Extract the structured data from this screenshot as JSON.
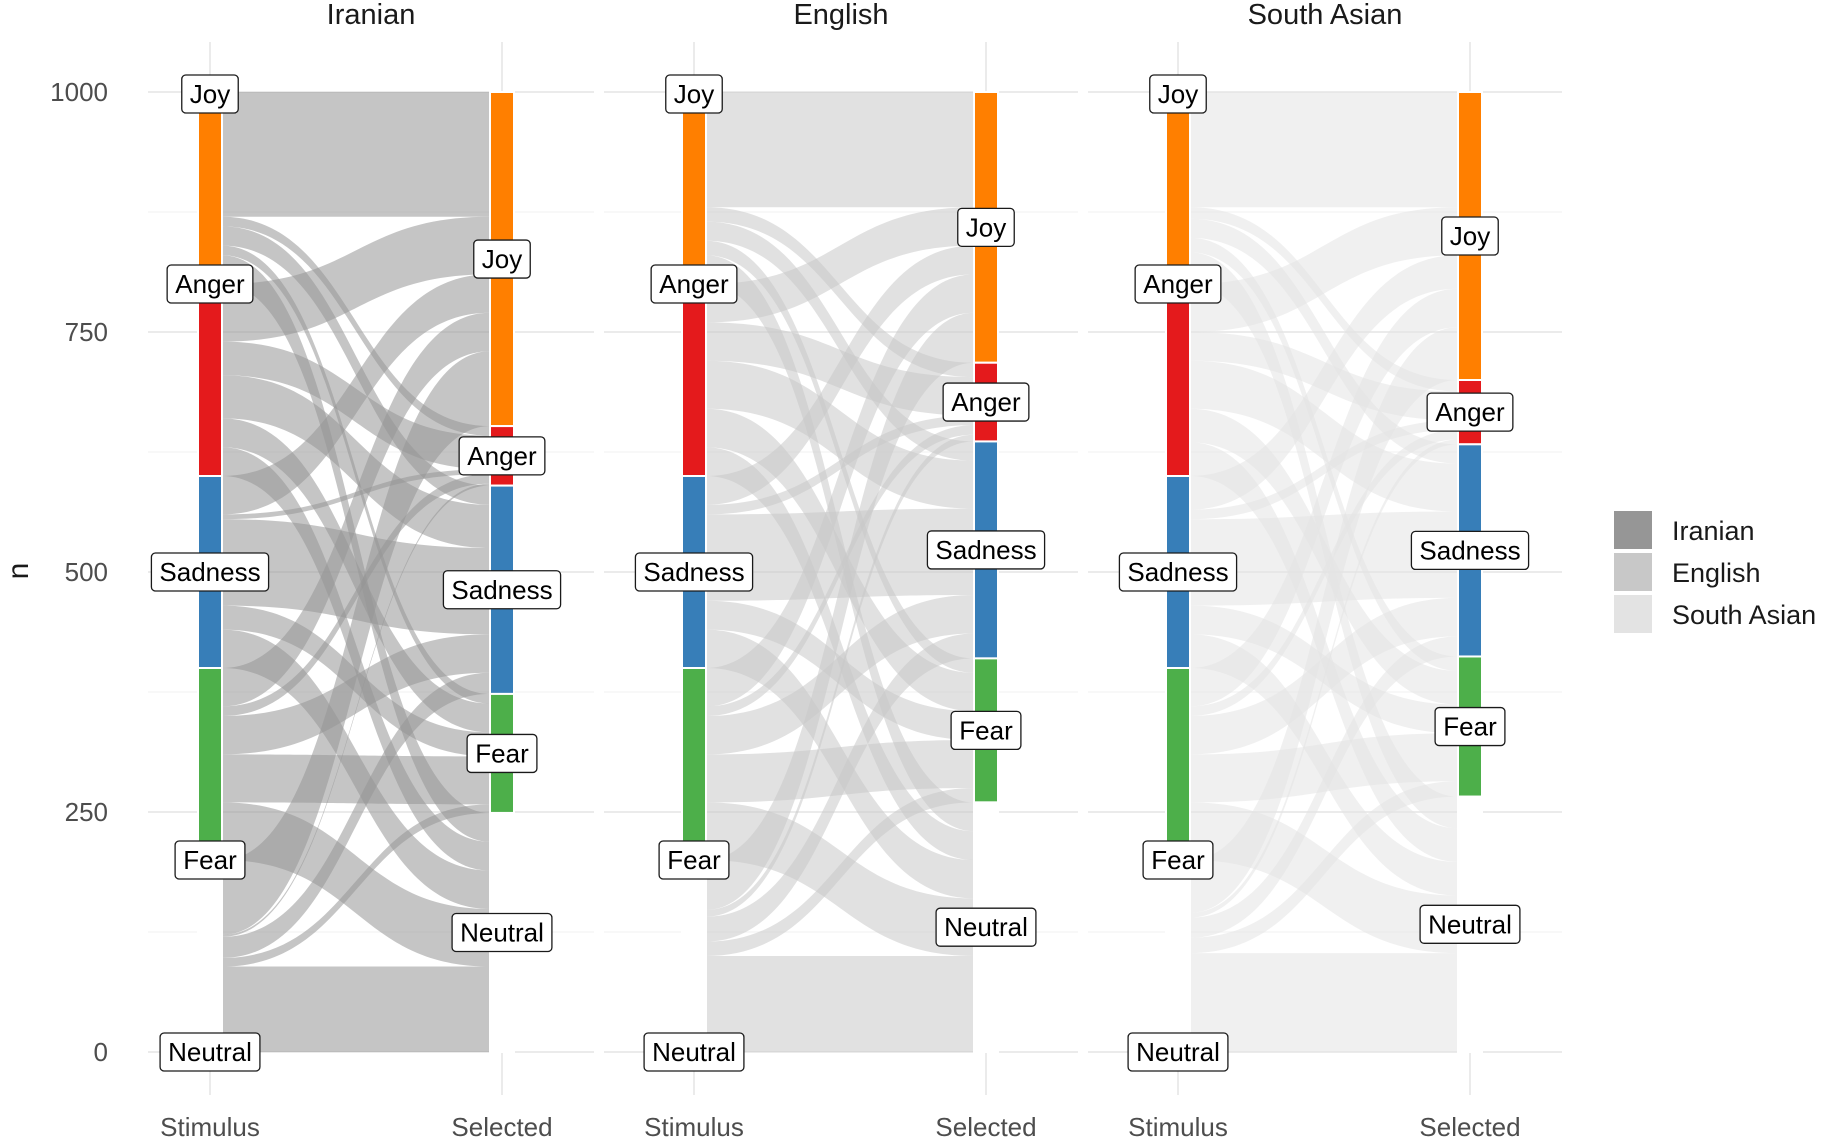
{
  "chart_data": {
    "type": "alluvial",
    "ylabel": "n",
    "ylim": [
      0,
      1000
    ],
    "y_ticks": [
      0,
      250,
      500,
      750,
      1000
    ],
    "x_axes": [
      "Stimulus",
      "Selected"
    ],
    "node_order": [
      "Joy",
      "Anger",
      "Sadness",
      "Fear",
      "Neutral"
    ],
    "colors": {
      "Joy": "#ff7f00",
      "Anger": "#e41a1c",
      "Sadness": "#377eb8",
      "Fear": "#4daf4a",
      "Neutral": "#ffffff",
      "Iranian": "#969696",
      "English": "#c8c8c8",
      "South Asian": "#e3e3e3"
    },
    "legend": {
      "position": "right",
      "entries": [
        "Iranian",
        "English",
        "South Asian"
      ]
    },
    "panels": [
      {
        "title": "Iranian",
        "stimulus": {
          "Joy": 200,
          "Anger": 200,
          "Sadness": 200,
          "Fear": 200,
          "Neutral": 200
        },
        "selected": {
          "Joy": 348,
          "Anger": 62,
          "Sadness": 217,
          "Fear": 124,
          "Neutral": 249
        },
        "flows": {
          "Joy": {
            "Joy": 130,
            "Anger": 10,
            "Sadness": 20,
            "Fear": 10,
            "Neutral": 30
          },
          "Anger": {
            "Joy": 60,
            "Anger": 35,
            "Sadness": 45,
            "Fear": 30,
            "Neutral": 30
          },
          "Sadness": {
            "Joy": 40,
            "Anger": 5,
            "Sadness": 90,
            "Fear": 25,
            "Neutral": 40
          },
          "Fear": {
            "Joy": 40,
            "Anger": 10,
            "Sadness": 40,
            "Fear": 50,
            "Neutral": 60
          },
          "Neutral": {
            "Joy": 78,
            "Anger": 2,
            "Sadness": 22,
            "Fear": 9,
            "Neutral": 89
          }
        }
      },
      {
        "title": "English",
        "stimulus": {
          "Joy": 200,
          "Anger": 200,
          "Sadness": 200,
          "Fear": 200,
          "Neutral": 200
        },
        "selected": {
          "Joy": 282,
          "Anger": 82,
          "Sadness": 226,
          "Fear": 150,
          "Neutral": 260
        },
        "flows": {
          "Joy": {
            "Joy": 120,
            "Anger": 15,
            "Sadness": 20,
            "Fear": 15,
            "Neutral": 30
          },
          "Anger": {
            "Joy": 40,
            "Anger": 40,
            "Sadness": 50,
            "Fear": 40,
            "Neutral": 30
          },
          "Sadness": {
            "Joy": 30,
            "Anger": 10,
            "Sadness": 90,
            "Fear": 30,
            "Neutral": 40
          },
          "Fear": {
            "Joy": 40,
            "Anger": 10,
            "Sadness": 40,
            "Fear": 50,
            "Neutral": 60
          },
          "Neutral": {
            "Joy": 52,
            "Anger": 7,
            "Sadness": 26,
            "Fear": 15,
            "Neutral": 100
          }
        }
      },
      {
        "title": "South Asian",
        "stimulus": {
          "Joy": 200,
          "Anger": 200,
          "Sadness": 200,
          "Fear": 200,
          "Neutral": 200
        },
        "selected": {
          "Joy": 300,
          "Anger": 67,
          "Sadness": 221,
          "Fear": 146,
          "Neutral": 266
        },
        "flows": {
          "Joy": {
            "Joy": 120,
            "Anger": 12,
            "Sadness": 20,
            "Fear": 15,
            "Neutral": 33
          },
          "Anger": {
            "Joy": 50,
            "Anger": 30,
            "Sadness": 50,
            "Fear": 35,
            "Neutral": 35
          },
          "Sadness": {
            "Joy": 35,
            "Anger": 10,
            "Sadness": 90,
            "Fear": 30,
            "Neutral": 35
          },
          "Fear": {
            "Joy": 40,
            "Anger": 10,
            "Sadness": 40,
            "Fear": 50,
            "Neutral": 60
          },
          "Neutral": {
            "Joy": 55,
            "Anger": 5,
            "Sadness": 21,
            "Fear": 16,
            "Neutral": 103
          }
        }
      }
    ]
  }
}
